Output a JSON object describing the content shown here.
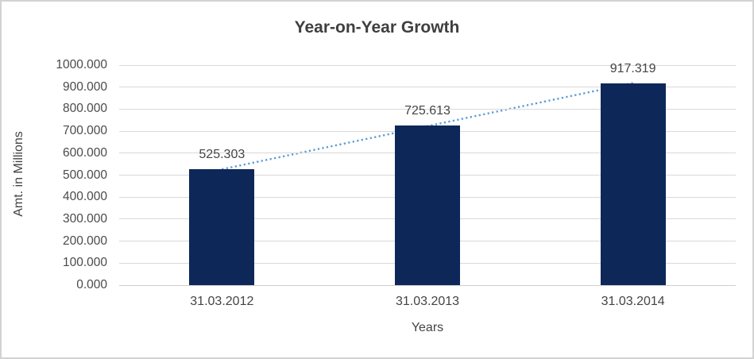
{
  "window": {
    "background_color": "#ffffff",
    "border_color": "#d2d2d2"
  },
  "chart_data": {
    "type": "bar",
    "title": "Year-on-Year Growth",
    "xlabel": "Years",
    "ylabel": "Amt. in Millions",
    "categories": [
      "31.03.2012",
      "31.03.2013",
      "31.03.2014"
    ],
    "values": [
      525.303,
      725.613,
      917.319
    ],
    "data_labels": [
      "525.303",
      "725.613",
      "917.319"
    ],
    "ylim": [
      0,
      1000
    ],
    "ytick_labels": [
      "0.000",
      "100.000",
      "200.000",
      "300.000",
      "400.000",
      "500.000",
      "600.000",
      "700.000",
      "800.000",
      "900.000",
      "1000.000"
    ],
    "grid": true,
    "legend": false,
    "bar_color": "#0d2758",
    "trendline": {
      "type": "linear",
      "style": "dotted",
      "color": "#5b9bd5"
    },
    "gridline_color": "#d9d9d9",
    "axis_line_color": "#d0d0d0",
    "tick_text_color": "#4a4a4a",
    "label_text_color": "#444444",
    "title_color": "#3f3f3f"
  }
}
